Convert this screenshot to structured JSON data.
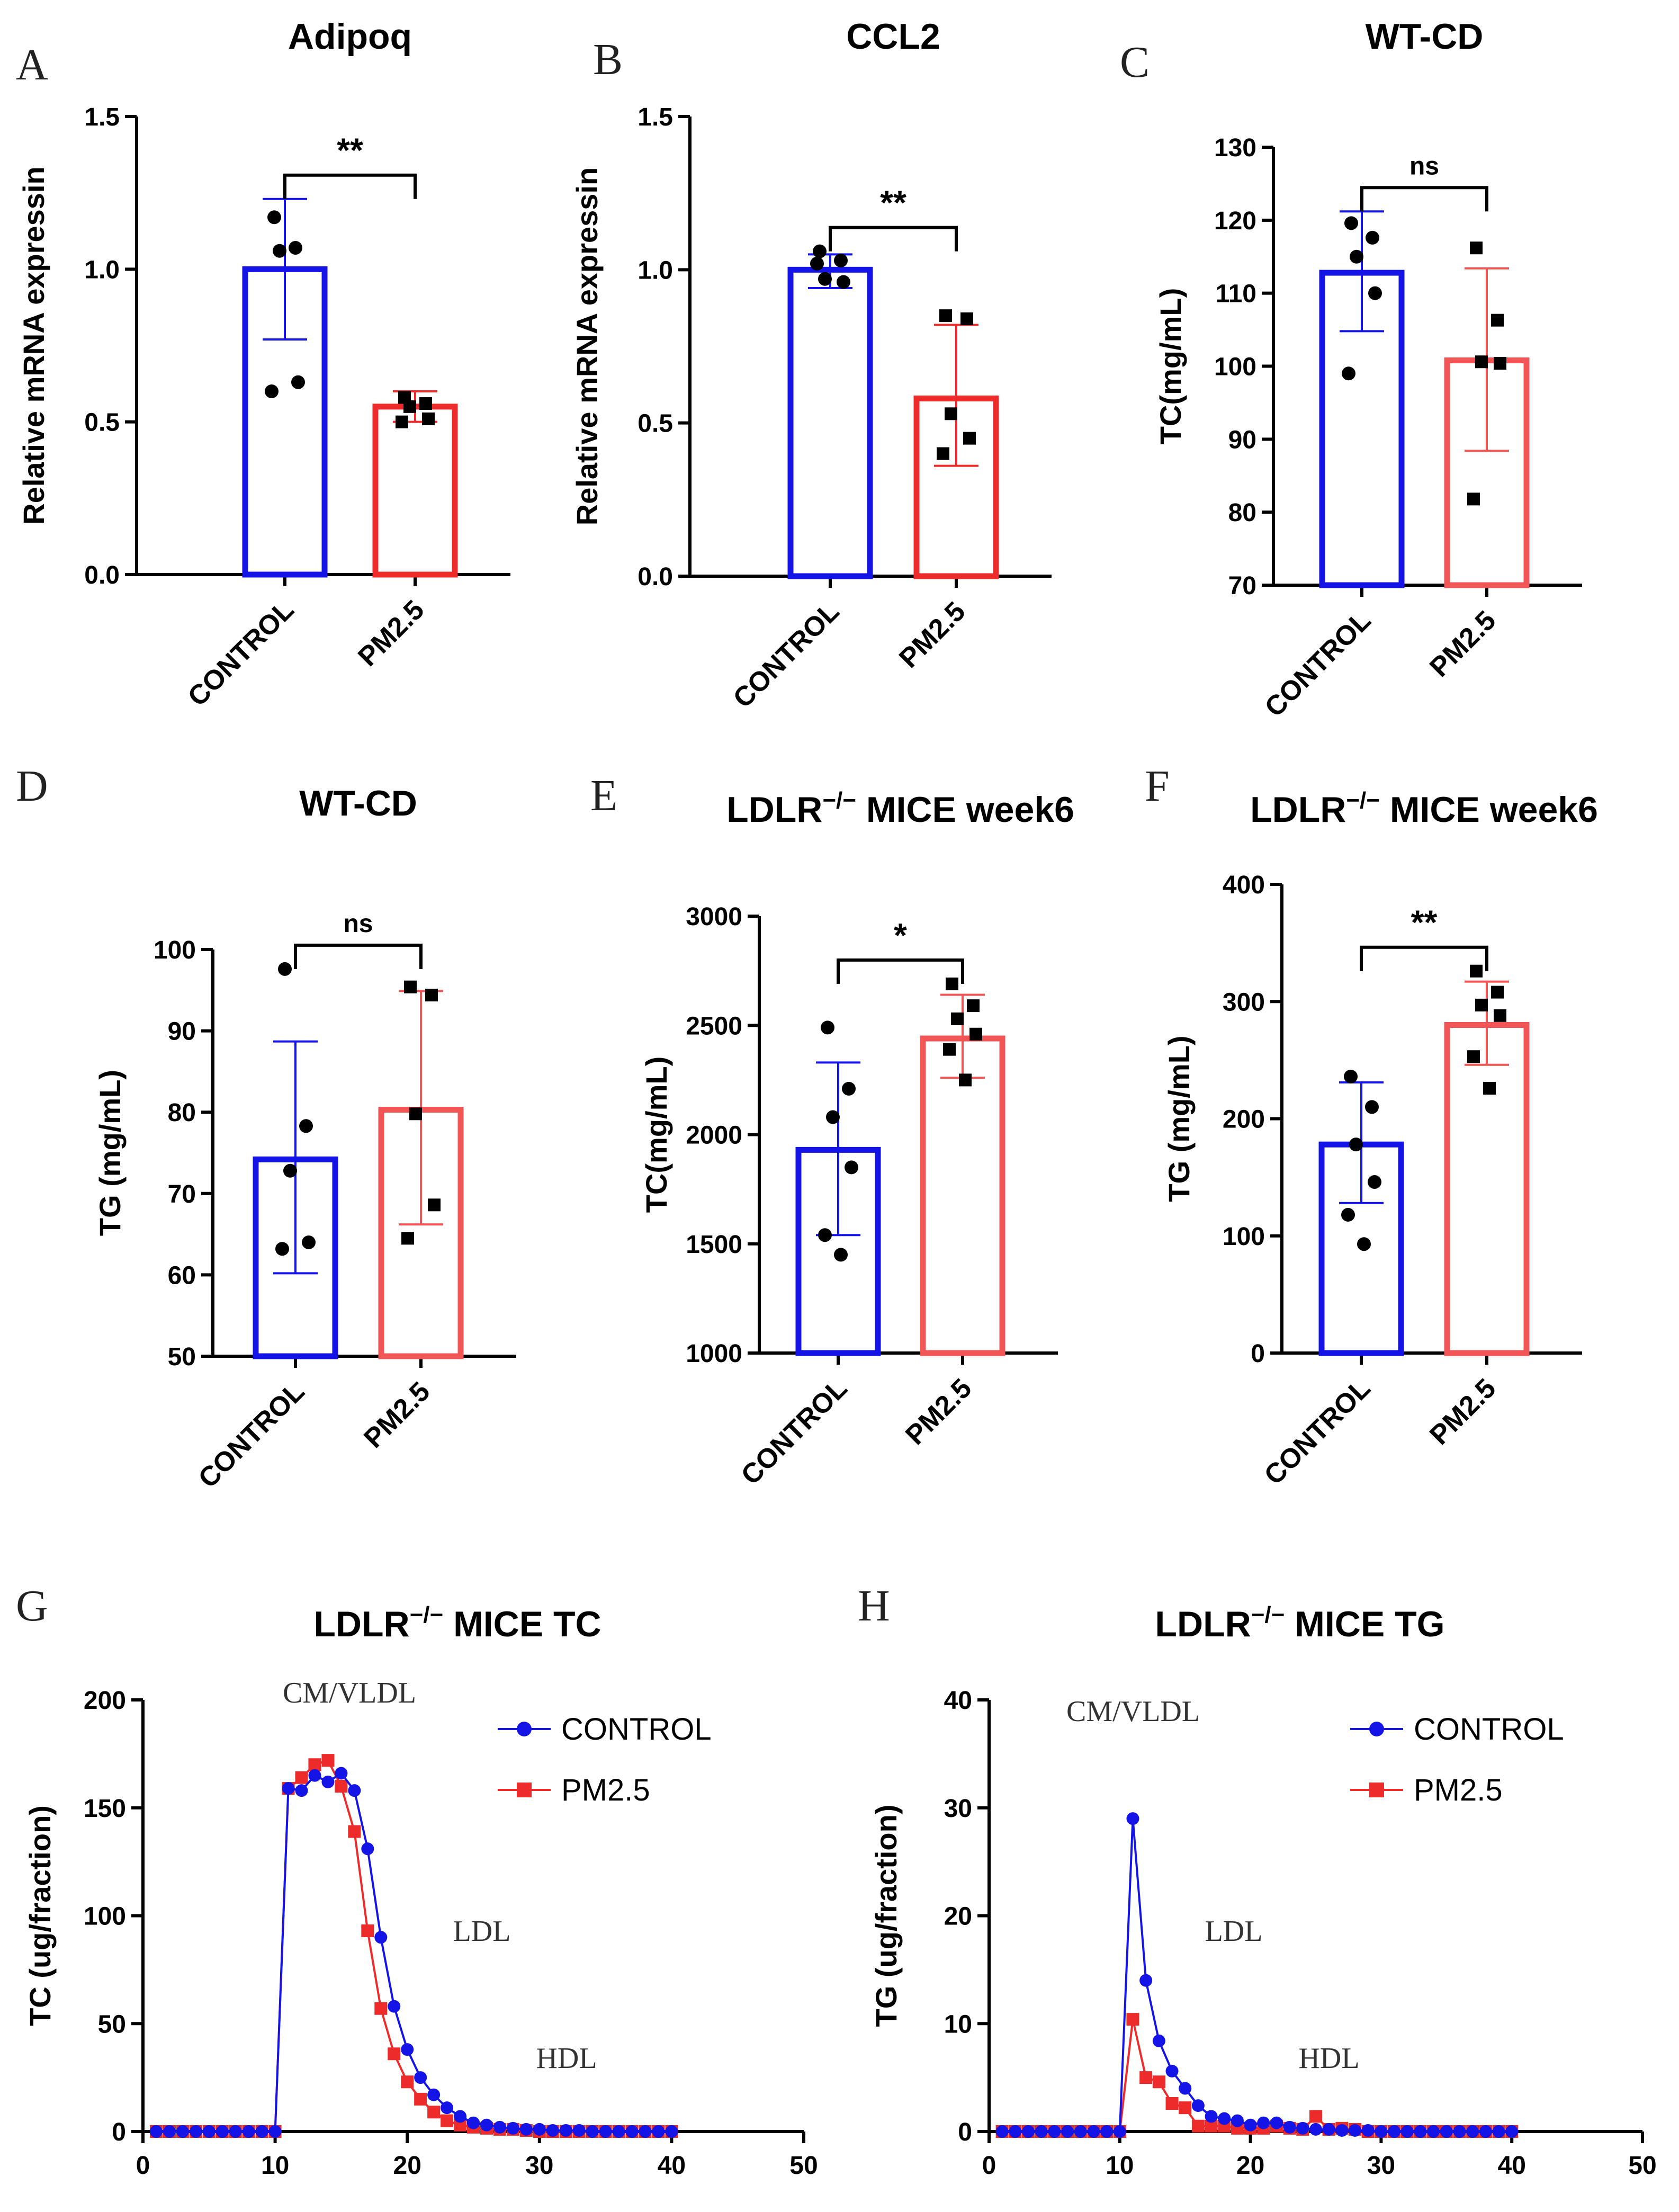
{
  "colors": {
    "control": "#1414E6",
    "pm25": "#EE2B2B",
    "pm25_light": "#F25555"
  },
  "chart_data": [
    {
      "panel": "A",
      "type": "bar",
      "title": "Adipoq",
      "ylabel": "Relative mRNA expressin",
      "ylim": [
        0,
        1.5
      ],
      "yticks": [
        "0.0",
        "0.5",
        "1.0",
        "1.5"
      ],
      "categories": [
        "CONTROL",
        "PM2.5"
      ],
      "means": [
        1.0,
        0.55
      ],
      "errors": [
        [
          0.77,
          1.23
        ],
        [
          0.5,
          0.6
        ]
      ],
      "points": [
        [
          1.17,
          1.07,
          1.06,
          0.63,
          0.6
        ],
        [
          0.58,
          0.56,
          0.55,
          0.51,
          0.5
        ]
      ],
      "significance": "**"
    },
    {
      "panel": "B",
      "type": "bar",
      "title": "CCL2",
      "ylabel": "Relative mRNA expressin",
      "ylim": [
        0,
        1.5
      ],
      "yticks": [
        "0.0",
        "0.5",
        "1.0",
        "1.5"
      ],
      "categories": [
        "CONTROL",
        "PM2.5"
      ],
      "means": [
        1.0,
        0.58
      ],
      "errors": [
        [
          0.94,
          1.05
        ],
        [
          0.36,
          0.82
        ]
      ],
      "points": [
        [
          1.06,
          1.03,
          0.97,
          0.96,
          1.02
        ],
        [
          0.85,
          0.84,
          0.53,
          0.45,
          0.4
        ]
      ],
      "significance": "**"
    },
    {
      "panel": "C",
      "type": "bar",
      "title": "WT-CD",
      "ylabel": "TC(mg/mL)",
      "ylim": [
        70,
        130
      ],
      "yticks": [
        "70",
        "80",
        "90",
        "100",
        "110",
        "120",
        "130"
      ],
      "categories": [
        "CONTROL",
        "PM2.5"
      ],
      "means": [
        112.8,
        100.8
      ],
      "errors": [
        [
          104.8,
          121.2
        ],
        [
          88.4,
          113.4
        ]
      ],
      "points": [
        [
          119.6,
          117.6,
          115.0,
          110.0,
          99.0
        ],
        [
          116.2,
          106.3,
          100.6,
          100.4,
          81.8
        ]
      ],
      "significance": "ns"
    },
    {
      "panel": "D",
      "type": "bar",
      "title": "WT-CD",
      "ylabel": "TG (mg/mL)",
      "ylim": [
        50,
        100
      ],
      "yticks": [
        "50",
        "60",
        "70",
        "80",
        "90",
        "100"
      ],
      "categories": [
        "CONTROL",
        "PM2.5"
      ],
      "means": [
        74.2,
        80.3
      ],
      "errors": [
        [
          60.2,
          88.7
        ],
        [
          66.2,
          94.9
        ]
      ],
      "points": [
        [
          97.6,
          78.3,
          72.8,
          64.0,
          63.2
        ],
        [
          95.4,
          94.4,
          79.8,
          68.6,
          64.5
        ]
      ],
      "significance": "ns"
    },
    {
      "panel": "E",
      "type": "bar",
      "title": "MICE week6",
      "title_prefix": "LDLR",
      "title_sup": "−/−",
      "ylabel": "TC(mg/mL)",
      "ylim": [
        1000,
        3000
      ],
      "yticks": [
        "1000",
        "1500",
        "2000",
        "2500",
        "3000"
      ],
      "categories": [
        "CONTROL",
        "PM2.5"
      ],
      "means": [
        1930,
        2440
      ],
      "errors": [
        [
          1540,
          2330
        ],
        [
          2260,
          2640
        ]
      ],
      "points": [
        [
          2490,
          2210,
          2080,
          1850,
          1540,
          1450
        ],
        [
          2690,
          2590,
          2530,
          2460,
          2390,
          2250
        ]
      ],
      "significance": "*"
    },
    {
      "panel": "F",
      "type": "bar",
      "title": "MICE week6",
      "title_prefix": "LDLR",
      "title_sup": "−/−",
      "ylabel": "TG (mg/mL)",
      "ylim": [
        0,
        400
      ],
      "yticks": [
        "0",
        "100",
        "200",
        "300",
        "400"
      ],
      "categories": [
        "CONTROL",
        "PM2.5"
      ],
      "means": [
        178,
        280
      ],
      "errors": [
        [
          128,
          231
        ],
        [
          246,
          317
        ]
      ],
      "points": [
        [
          236,
          210,
          178,
          146,
          118,
          93
        ],
        [
          326,
          308,
          297,
          288,
          253,
          226
        ]
      ],
      "significance": "**"
    },
    {
      "panel": "G",
      "type": "line",
      "title": "MICE TC",
      "title_prefix": "LDLR",
      "title_sup": "−/−",
      "xlabel": "",
      "ylabel": "TC (ug/fraction)",
      "xlim": [
        0,
        50
      ],
      "ylim": [
        0,
        200
      ],
      "xticks": [
        "0",
        "10",
        "20",
        "30",
        "40",
        "50"
      ],
      "yticks": [
        "0",
        "50",
        "100",
        "150",
        "200"
      ],
      "annotations": [
        "CM/VLDL",
        "LDL",
        "HDL"
      ],
      "x": [
        1,
        2,
        3,
        4,
        5,
        6,
        7,
        8,
        9,
        10,
        11,
        12,
        13,
        14,
        15,
        16,
        17,
        18,
        19,
        20,
        21,
        22,
        23,
        24,
        25,
        26,
        27,
        28,
        29,
        30,
        31,
        32,
        33,
        34,
        35,
        36,
        37,
        38,
        39,
        40
      ],
      "series": [
        {
          "name": "CONTROL",
          "values": [
            0,
            0,
            0,
            0,
            0,
            0,
            0,
            0,
            0,
            0,
            159,
            158,
            165,
            162,
            166,
            158,
            131,
            90,
            58,
            38,
            25,
            17,
            11,
            7,
            4,
            3,
            2,
            1.5,
            1,
            1,
            0.5,
            0.5,
            0.5,
            0,
            0,
            0,
            0,
            0,
            0,
            0
          ]
        },
        {
          "name": "PM2.5",
          "values": [
            0,
            0,
            0,
            0,
            0,
            0,
            0,
            0,
            0,
            0,
            159,
            164,
            170,
            172,
            160,
            139,
            93,
            57,
            36,
            23,
            15,
            9,
            5,
            3,
            2,
            1.5,
            1,
            1,
            0.5,
            0,
            0,
            0,
            0,
            0,
            0,
            0,
            0,
            0,
            0,
            0
          ]
        }
      ]
    },
    {
      "panel": "H",
      "type": "line",
      "title": "MICE TG",
      "title_prefix": "LDLR",
      "title_sup": "−/−",
      "xlabel": "",
      "ylabel": "TG (ug/fraction)",
      "xlim": [
        0,
        50
      ],
      "ylim": [
        0,
        40
      ],
      "xticks": [
        "0",
        "10",
        "20",
        "30",
        "40",
        "50"
      ],
      "yticks": [
        "0",
        "10",
        "20",
        "30",
        "40"
      ],
      "annotations": [
        "CM/VLDL",
        "LDL",
        "HDL"
      ],
      "x": [
        1,
        2,
        3,
        4,
        5,
        6,
        7,
        8,
        9,
        10,
        11,
        12,
        13,
        14,
        15,
        16,
        17,
        18,
        19,
        20,
        21,
        22,
        23,
        24,
        25,
        26,
        27,
        28,
        29,
        30,
        31,
        32,
        33,
        34,
        35,
        36,
        37,
        38,
        39,
        40
      ],
      "series": [
        {
          "name": "CONTROL",
          "values": [
            0,
            0,
            0,
            0,
            0,
            0,
            0,
            0,
            0,
            0,
            29,
            14,
            8.4,
            5.6,
            4,
            2.4,
            1.4,
            1.2,
            1,
            0.6,
            0.8,
            0.8,
            0.4,
            0.3,
            0.2,
            0.2,
            0.1,
            0.1,
            0.1,
            0,
            0,
            0,
            0,
            0,
            0,
            0,
            0,
            0,
            0,
            0
          ]
        },
        {
          "name": "PM2.5",
          "values": [
            0,
            0,
            0,
            0,
            0,
            0,
            0,
            0,
            0,
            0,
            10.4,
            5,
            4.6,
            2.6,
            2.2,
            0.5,
            0.5,
            0.5,
            0.3,
            0.3,
            0.3,
            0.5,
            0.3,
            0.2,
            1.4,
            0.2,
            0.3,
            0.2,
            0,
            0,
            0,
            0,
            0,
            0,
            0,
            0,
            0,
            0,
            0,
            0
          ]
        }
      ]
    }
  ]
}
